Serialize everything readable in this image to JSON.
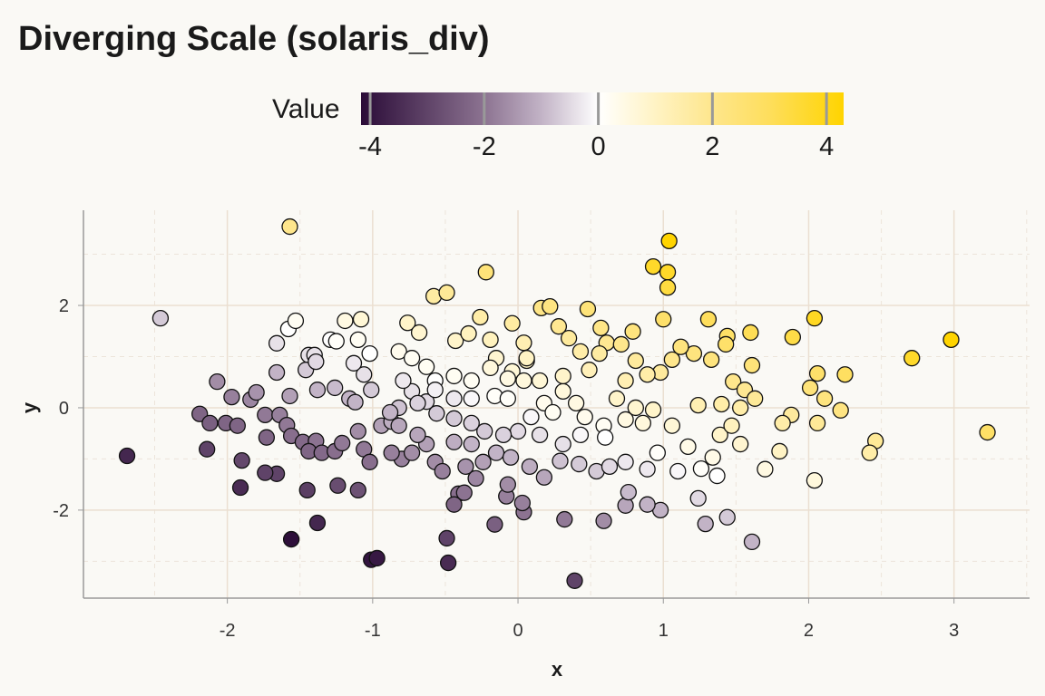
{
  "chart_data": {
    "type": "scatter",
    "title": "Diverging Scale (solaris_div)",
    "xlabel": "x",
    "ylabel": "y",
    "xlim": [
      -2.99,
      3.52
    ],
    "ylim": [
      -3.72,
      3.86
    ],
    "xticks": [
      -2,
      -1,
      0,
      1,
      2,
      3
    ],
    "yticks": [
      -2,
      0,
      2
    ],
    "grid": true,
    "legend": {
      "title": "Value",
      "placement": "top",
      "range": [
        -4.16,
        4.3
      ],
      "ticks": [
        -4,
        -2,
        0,
        2,
        4
      ],
      "colors": [
        {
          "value": -4.16,
          "color": "#2b0c38"
        },
        {
          "value": -2,
          "color": "#8c7391"
        },
        {
          "value": -1,
          "color": "#c2b3c6"
        },
        {
          "value": 0,
          "color": "#ffffff"
        },
        {
          "value": 1,
          "color": "#fff3c4"
        },
        {
          "value": 2,
          "color": "#fee68c"
        },
        {
          "value": 3,
          "color": "#fede5c"
        },
        {
          "value": 4.3,
          "color": "#ffd400"
        }
      ]
    },
    "points": [
      [
        -1.57,
        3.54,
        2.0
      ],
      [
        -2.46,
        1.75,
        -0.7
      ],
      [
        -2.69,
        -0.94,
        -3.6
      ],
      [
        -1.56,
        -2.57,
        -4.1
      ],
      [
        -1.01,
        -2.97,
        -4.0
      ],
      [
        -0.97,
        -2.94,
        -3.9
      ],
      [
        -0.48,
        -3.03,
        -3.5
      ],
      [
        0.39,
        -3.38,
        -3.0
      ],
      [
        -1.38,
        -2.25,
        -3.6
      ],
      [
        -0.49,
        -2.55,
        -3.0
      ],
      [
        -0.16,
        -2.28,
        -2.4
      ],
      [
        1.04,
        3.26,
        4.3
      ],
      [
        0.93,
        2.76,
        3.7
      ],
      [
        1.03,
        2.65,
        3.7
      ],
      [
        1.03,
        2.35,
        3.4
      ],
      [
        -0.22,
        2.65,
        2.4
      ],
      [
        2.98,
        1.33,
        4.3
      ],
      [
        2.71,
        0.97,
        3.7
      ],
      [
        3.23,
        -0.48,
        2.8
      ],
      [
        2.46,
        -0.65,
        1.8
      ],
      [
        2.42,
        -0.88,
        1.5
      ],
      [
        2.04,
        1.75,
        3.8
      ],
      [
        1.89,
        1.38,
        3.3
      ],
      [
        2.25,
        0.65,
        2.9
      ],
      [
        2.06,
        0.67,
        2.7
      ],
      [
        2.11,
        0.18,
        2.3
      ],
      [
        2.22,
        -0.05,
        2.2
      ],
      [
        2.04,
        -1.42,
        0.6
      ],
      [
        2.01,
        0.39,
        2.4
      ],
      [
        2.06,
        -0.3,
        1.8
      ],
      [
        1.88,
        -0.14,
        1.7
      ],
      [
        1.82,
        -0.3,
        1.5
      ],
      [
        1.8,
        -0.85,
        1.0
      ],
      [
        1.7,
        -1.2,
        0.5
      ],
      [
        1.61,
        -2.62,
        -1.0
      ],
      [
        1.44,
        -2.14,
        -0.7
      ],
      [
        1.29,
        -2.27,
        -1.0
      ],
      [
        1.24,
        -1.77,
        -0.5
      ],
      [
        0.98,
        -2.0,
        -1.0
      ],
      [
        0.89,
        -1.89,
        -1.0
      ],
      [
        0.74,
        -1.91,
        -1.2
      ],
      [
        0.76,
        -1.65,
        -0.9
      ],
      [
        0.59,
        -2.21,
        -1.6
      ],
      [
        0.32,
        -2.18,
        -1.9
      ],
      [
        0.04,
        -2.04,
        -2.0
      ],
      [
        -0.08,
        -1.73,
        -1.8
      ],
      [
        -0.41,
        -1.68,
        -2.1
      ],
      [
        -0.37,
        -1.66,
        -2.0
      ],
      [
        -0.44,
        -1.89,
        -2.3
      ],
      [
        -0.8,
        -1.0,
        -1.8
      ],
      [
        -0.87,
        -0.88,
        -1.8
      ],
      [
        -1.1,
        -1.61,
        -2.7
      ],
      [
        -1.24,
        -1.52,
        -2.8
      ],
      [
        -1.45,
        -1.61,
        -3.1
      ],
      [
        -1.66,
        -1.29,
        -3.0
      ],
      [
        -1.74,
        -1.27,
        -3.0
      ],
      [
        -1.91,
        -1.56,
        -3.5
      ],
      [
        -1.9,
        -1.03,
        -2.9
      ],
      [
        -2.14,
        -0.81,
        -3.0
      ],
      [
        -2.19,
        -0.12,
        -2.3
      ],
      [
        -2.12,
        -0.3,
        -2.4
      ],
      [
        -2.01,
        -0.3,
        -2.3
      ],
      [
        -1.93,
        -0.35,
        -2.3
      ],
      [
        -2.07,
        0.51,
        -1.6
      ],
      [
        -1.97,
        0.21,
        -1.8
      ],
      [
        -1.84,
        0.16,
        -1.7
      ],
      [
        -1.8,
        0.3,
        -1.5
      ],
      [
        -1.66,
        0.69,
        -1.0
      ],
      [
        -1.66,
        1.26,
        -0.4
      ],
      [
        -1.58,
        1.54,
        0.0
      ],
      [
        -1.53,
        1.7,
        0.2
      ],
      [
        -1.44,
        1.03,
        -0.4
      ],
      [
        -1.4,
        1.03,
        -0.4
      ],
      [
        -1.46,
        0.74,
        -0.7
      ],
      [
        -1.39,
        0.9,
        -0.5
      ],
      [
        -1.29,
        1.33,
        0.0
      ],
      [
        -1.25,
        1.3,
        0.1
      ],
      [
        -1.19,
        1.7,
        0.5
      ],
      [
        -1.08,
        1.73,
        0.7
      ],
      [
        -1.1,
        1.33,
        0.2
      ],
      [
        -1.02,
        1.06,
        0.0
      ],
      [
        -1.06,
        0.65,
        -0.4
      ],
      [
        -1.13,
        0.87,
        -0.3
      ],
      [
        -1.38,
        0.35,
        -1.0
      ],
      [
        -1.26,
        0.39,
        -0.9
      ],
      [
        -1.16,
        0.18,
        -1.0
      ],
      [
        -1.12,
        0.11,
        -1.0
      ],
      [
        -1.01,
        0.35,
        -0.7
      ],
      [
        -1.57,
        0.23,
        -1.3
      ],
      [
        -1.74,
        -0.14,
        -1.9
      ],
      [
        -1.64,
        -0.14,
        -1.8
      ],
      [
        -1.59,
        -0.34,
        -1.9
      ],
      [
        -1.56,
        -0.55,
        -2.1
      ],
      [
        -1.73,
        -0.58,
        -2.3
      ],
      [
        -1.48,
        -0.67,
        -2.2
      ],
      [
        -1.39,
        -0.65,
        -2.0
      ],
      [
        -1.44,
        -0.85,
        -2.3
      ],
      [
        -1.35,
        -0.88,
        -2.2
      ],
      [
        -1.26,
        -0.85,
        -2.1
      ],
      [
        -1.21,
        -0.69,
        -1.9
      ],
      [
        -1.1,
        -0.46,
        -1.6
      ],
      [
        -1.06,
        -0.81,
        -1.9
      ],
      [
        -1.02,
        -1.06,
        -2.1
      ],
      [
        -0.94,
        -0.35,
        -1.3
      ],
      [
        -0.87,
        -0.27,
        -1.1
      ],
      [
        -0.82,
        0.0,
        -0.8
      ],
      [
        -0.73,
        -0.88,
        -1.6
      ],
      [
        -0.63,
        -0.71,
        -1.3
      ],
      [
        -0.57,
        -1.06,
        -1.6
      ],
      [
        -0.52,
        -1.24,
        -1.8
      ],
      [
        -0.36,
        -1.15,
        -1.5
      ],
      [
        -0.24,
        -1.06,
        -1.3
      ],
      [
        -0.15,
        -0.88,
        -1.0
      ],
      [
        -0.05,
        -0.97,
        -1.0
      ],
      [
        0.08,
        -1.15,
        -1.1
      ],
      [
        0.18,
        -1.36,
        -1.2
      ],
      [
        0.29,
        -1.04,
        -0.8
      ],
      [
        0.42,
        -1.1,
        -0.7
      ],
      [
        0.54,
        -1.24,
        -0.7
      ],
      [
        0.63,
        -1.15,
        -0.5
      ],
      [
        0.74,
        -1.06,
        -0.3
      ],
      [
        0.89,
        -1.2,
        -0.3
      ],
      [
        0.96,
        -0.88,
        0.1
      ],
      [
        1.1,
        -1.24,
        -0.1
      ],
      [
        1.17,
        -0.76,
        0.4
      ],
      [
        1.26,
        -1.19,
        0.1
      ],
      [
        1.34,
        -0.97,
        0.4
      ],
      [
        1.37,
        -1.33,
        0.0
      ],
      [
        1.39,
        -0.53,
        0.9
      ],
      [
        1.47,
        -0.35,
        1.1
      ],
      [
        1.53,
        -0.71,
        0.8
      ],
      [
        1.53,
        0.0,
        1.5
      ],
      [
        1.24,
        0.05,
        1.3
      ],
      [
        1.4,
        0.07,
        1.5
      ],
      [
        1.48,
        0.51,
        2.0
      ],
      [
        1.56,
        0.35,
        1.9
      ],
      [
        1.63,
        0.18,
        1.8
      ],
      [
        1.61,
        0.83,
        2.4
      ],
      [
        1.6,
        1.47,
        3.1
      ],
      [
        1.44,
        1.4,
        2.8
      ],
      [
        1.43,
        1.24,
        2.7
      ],
      [
        1.31,
        1.73,
        3.0
      ],
      [
        1.33,
        0.94,
        2.3
      ],
      [
        1.21,
        1.06,
        2.3
      ],
      [
        1.12,
        1.19,
        2.3
      ],
      [
        1.06,
        0.94,
        2.0
      ],
      [
        1.0,
        1.73,
        2.7
      ],
      [
        0.98,
        0.69,
        1.7
      ],
      [
        0.89,
        0.65,
        1.5
      ],
      [
        0.81,
        0.92,
        1.7
      ],
      [
        0.74,
        0.53,
        1.3
      ],
      [
        0.68,
        0.18,
        0.9
      ],
      [
        0.81,
        0.0,
        0.8
      ],
      [
        0.93,
        -0.04,
        0.9
      ],
      [
        1.06,
        -0.35,
        0.7
      ],
      [
        0.86,
        -0.3,
        0.6
      ],
      [
        0.74,
        -0.23,
        0.5
      ],
      [
        0.59,
        -0.35,
        0.2
      ],
      [
        0.6,
        -0.58,
        0.0
      ],
      [
        0.46,
        -0.18,
        0.3
      ],
      [
        0.4,
        0.09,
        0.5
      ],
      [
        0.31,
        0.32,
        0.6
      ],
      [
        0.18,
        0.09,
        0.3
      ],
      [
        0.09,
        -0.18,
        -0.1
      ],
      [
        0.0,
        -0.46,
        -0.5
      ],
      [
        -0.1,
        -0.53,
        -0.6
      ],
      [
        -0.23,
        -0.46,
        -0.7
      ],
      [
        -0.32,
        -0.3,
        -0.6
      ],
      [
        -0.44,
        -0.21,
        -0.7
      ],
      [
        -0.56,
        -0.11,
        -0.7
      ],
      [
        -0.63,
        0.12,
        -0.5
      ],
      [
        -0.73,
        0.32,
        -0.4
      ],
      [
        -0.79,
        0.53,
        -0.3
      ],
      [
        -0.82,
        1.1,
        0.3
      ],
      [
        -0.76,
        1.66,
        0.9
      ],
      [
        -0.68,
        1.47,
        0.8
      ],
      [
        -0.58,
        2.18,
        1.6
      ],
      [
        -0.49,
        2.25,
        1.8
      ],
      [
        -0.43,
        1.31,
        0.9
      ],
      [
        -0.34,
        1.45,
        1.1
      ],
      [
        -0.26,
        1.77,
        1.5
      ],
      [
        -0.19,
        1.33,
        1.1
      ],
      [
        -0.15,
        0.97,
        0.8
      ],
      [
        -0.04,
        1.65,
        1.6
      ],
      [
        -0.04,
        0.71,
        0.7
      ],
      [
        0.04,
        1.27,
        1.3
      ],
      [
        0.06,
        0.92,
        1.0
      ],
      [
        0.16,
        1.95,
        2.1
      ],
      [
        0.22,
        1.98,
        2.2
      ],
      [
        0.28,
        1.59,
        1.9
      ],
      [
        0.35,
        1.36,
        1.7
      ],
      [
        0.43,
        1.1,
        1.5
      ],
      [
        0.48,
        1.93,
        2.4
      ],
      [
        0.57,
        1.56,
        2.1
      ],
      [
        0.61,
        1.27,
        1.9
      ],
      [
        0.71,
        1.24,
        2.0
      ],
      [
        0.79,
        1.49,
        2.3
      ],
      [
        0.56,
        1.06,
        1.6
      ],
      [
        0.49,
        0.74,
        1.2
      ],
      [
        0.31,
        0.62,
        0.9
      ],
      [
        0.15,
        0.53,
        0.7
      ],
      [
        0.04,
        0.53,
        0.6
      ],
      [
        -0.07,
        0.57,
        0.5
      ],
      [
        -0.19,
        0.78,
        0.6
      ],
      [
        -0.32,
        0.53,
        0.2
      ],
      [
        -0.44,
        0.62,
        0.2
      ],
      [
        -0.57,
        0.53,
        0.0
      ],
      [
        -0.63,
        0.8,
        0.2
      ],
      [
        -0.73,
        0.97,
        0.2
      ],
      [
        -0.32,
        0.18,
        -0.1
      ],
      [
        -0.16,
        0.23,
        0.1
      ],
      [
        -0.07,
        0.18,
        0.1
      ],
      [
        -0.44,
        0.18,
        -0.3
      ],
      [
        -0.57,
        0.35,
        -0.2
      ],
      [
        -0.69,
        0.09,
        -0.6
      ],
      [
        -0.88,
        -0.09,
        -1.0
      ],
      [
        0.06,
        0.97,
        1.0
      ],
      [
        0.24,
        -0.09,
        0.2
      ],
      [
        0.15,
        -0.53,
        -0.4
      ],
      [
        0.31,
        -0.71,
        -0.4
      ],
      [
        0.43,
        -0.53,
        -0.1
      ],
      [
        -0.32,
        -0.71,
        -1.0
      ],
      [
        -0.44,
        -0.67,
        -1.1
      ],
      [
        -0.69,
        -0.53,
        -1.2
      ],
      [
        -0.82,
        -0.35,
        -1.2
      ],
      [
        -0.29,
        -1.38,
        -1.7
      ],
      [
        0.03,
        -1.86,
        -1.8
      ],
      [
        -0.07,
        -1.5,
        -1.6
      ]
    ]
  }
}
